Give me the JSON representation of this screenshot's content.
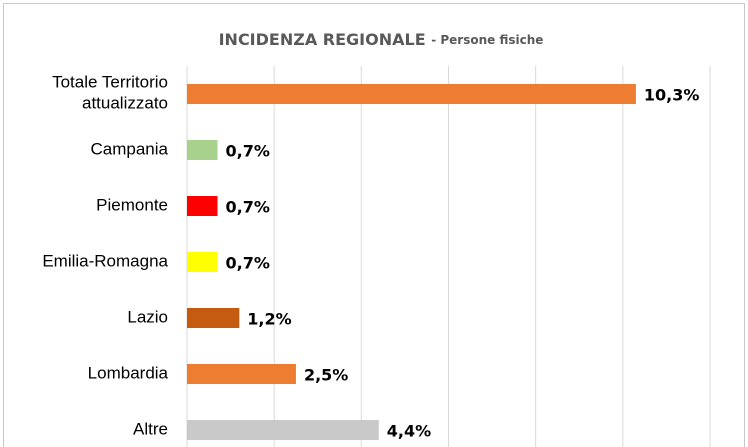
{
  "chart_data": {
    "type": "hbar",
    "title": "INCIDENZA REGIONALE",
    "subtitle": "- Persone fisiche",
    "categories": [
      "Totale Territorio\nattualizzato",
      "Campania",
      "Piemonte",
      "Emilia-Romagna",
      "Lazio",
      "Lombardia",
      "Altre"
    ],
    "values": [
      10.3,
      0.7,
      0.7,
      0.7,
      1.2,
      2.5,
      4.4
    ],
    "value_labels": [
      "10,3%",
      "0,7%",
      "0,7%",
      "0,7%",
      "1,2%",
      "2,5%",
      "4,4%"
    ],
    "colors": [
      "#ed7d31",
      "#a9d18e",
      "#ff0000",
      "#ffff00",
      "#c55a11",
      "#ed7d31",
      "#c9c9c9"
    ],
    "xlim": [
      0,
      12
    ],
    "xticks": [
      0,
      2,
      4,
      6,
      8,
      10,
      12
    ],
    "grid": true
  }
}
